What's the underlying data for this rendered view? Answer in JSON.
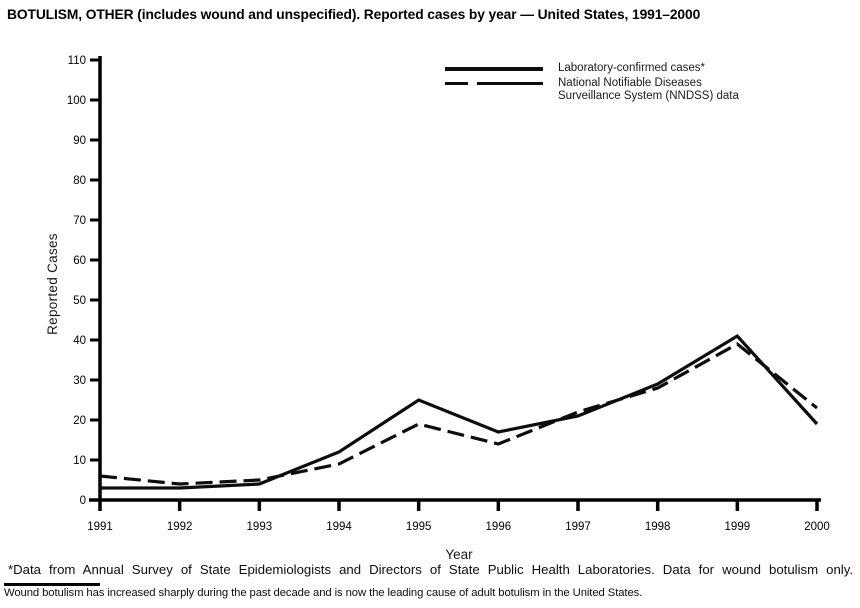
{
  "chart_data": {
    "type": "line",
    "title": "BOTULISM, OTHER (includes wound and unspecified). Reported cases by year — United States, 1991–2000",
    "xlabel": "Year",
    "ylabel": "Reported Cases",
    "x": [
      1991,
      1992,
      1993,
      1994,
      1995,
      1996,
      1997,
      1998,
      1999,
      2000
    ],
    "ylim": [
      0,
      110
    ],
    "ytick_step": 10,
    "grid": false,
    "legend_position": "top-center-inside",
    "line_color": "#0d0d0d",
    "series": [
      {
        "name": "Laboratory-confirmed cases*",
        "style": "solid",
        "values": [
          3,
          3,
          4,
          12,
          25,
          17,
          21,
          29,
          41,
          19
        ]
      },
      {
        "name": "National Notifiable Diseases Surveillance System (NNDSS) data",
        "style": "dashed",
        "values": [
          6,
          4,
          5,
          9,
          19,
          14,
          22,
          28,
          39,
          23
        ]
      }
    ]
  },
  "footnotes": {
    "line1": "*Data from Annual Survey of State Epidemiologists and Directors of State Public Health Laboratories. Data for wound botulism only.",
    "line2": "Wound botulism has increased sharply during the past decade and is now the leading cause of adult botulism in the United States."
  }
}
